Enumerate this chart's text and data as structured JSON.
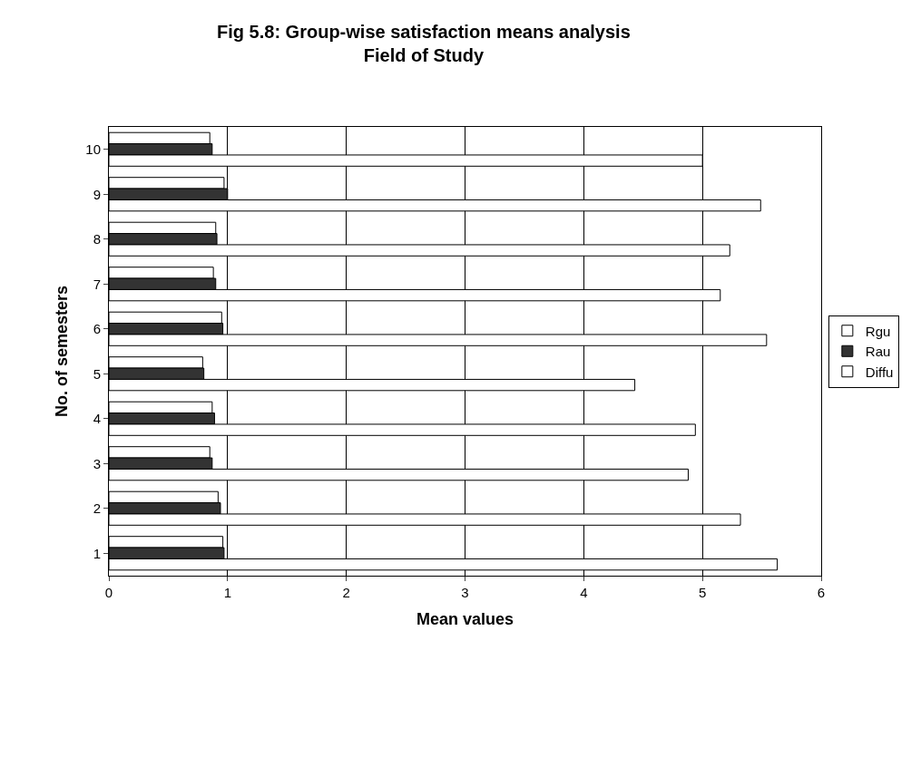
{
  "chart_data": {
    "type": "bar",
    "orientation": "horizontal",
    "title": "Fig 5.8: Group-wise satisfaction means analysis",
    "subtitle": "Field of Study",
    "xlabel": "Mean values",
    "ylabel": "No. of semesters",
    "categories": [
      "10",
      "9",
      "8",
      "7",
      "6",
      "5",
      "4",
      "3",
      "2",
      "1"
    ],
    "series": [
      {
        "name": "Rgu",
        "color": "#ffffff",
        "values": [
          0.85,
          0.97,
          0.9,
          0.88,
          0.95,
          0.79,
          0.87,
          0.85,
          0.92,
          0.96
        ]
      },
      {
        "name": "Rau",
        "color": "#333333",
        "values": [
          0.87,
          1.0,
          0.91,
          0.9,
          0.96,
          0.8,
          0.89,
          0.87,
          0.94,
          0.97
        ]
      },
      {
        "name": "Diffu",
        "color": "#ffffff",
        "values": [
          5.0,
          5.49,
          5.23,
          5.15,
          5.54,
          4.43,
          4.94,
          4.88,
          5.32,
          5.63
        ]
      }
    ],
    "xlim": [
      0,
      6
    ],
    "xticks": [
      0,
      1,
      2,
      3,
      4,
      5,
      6
    ],
    "grid": "x",
    "legend": "right"
  }
}
